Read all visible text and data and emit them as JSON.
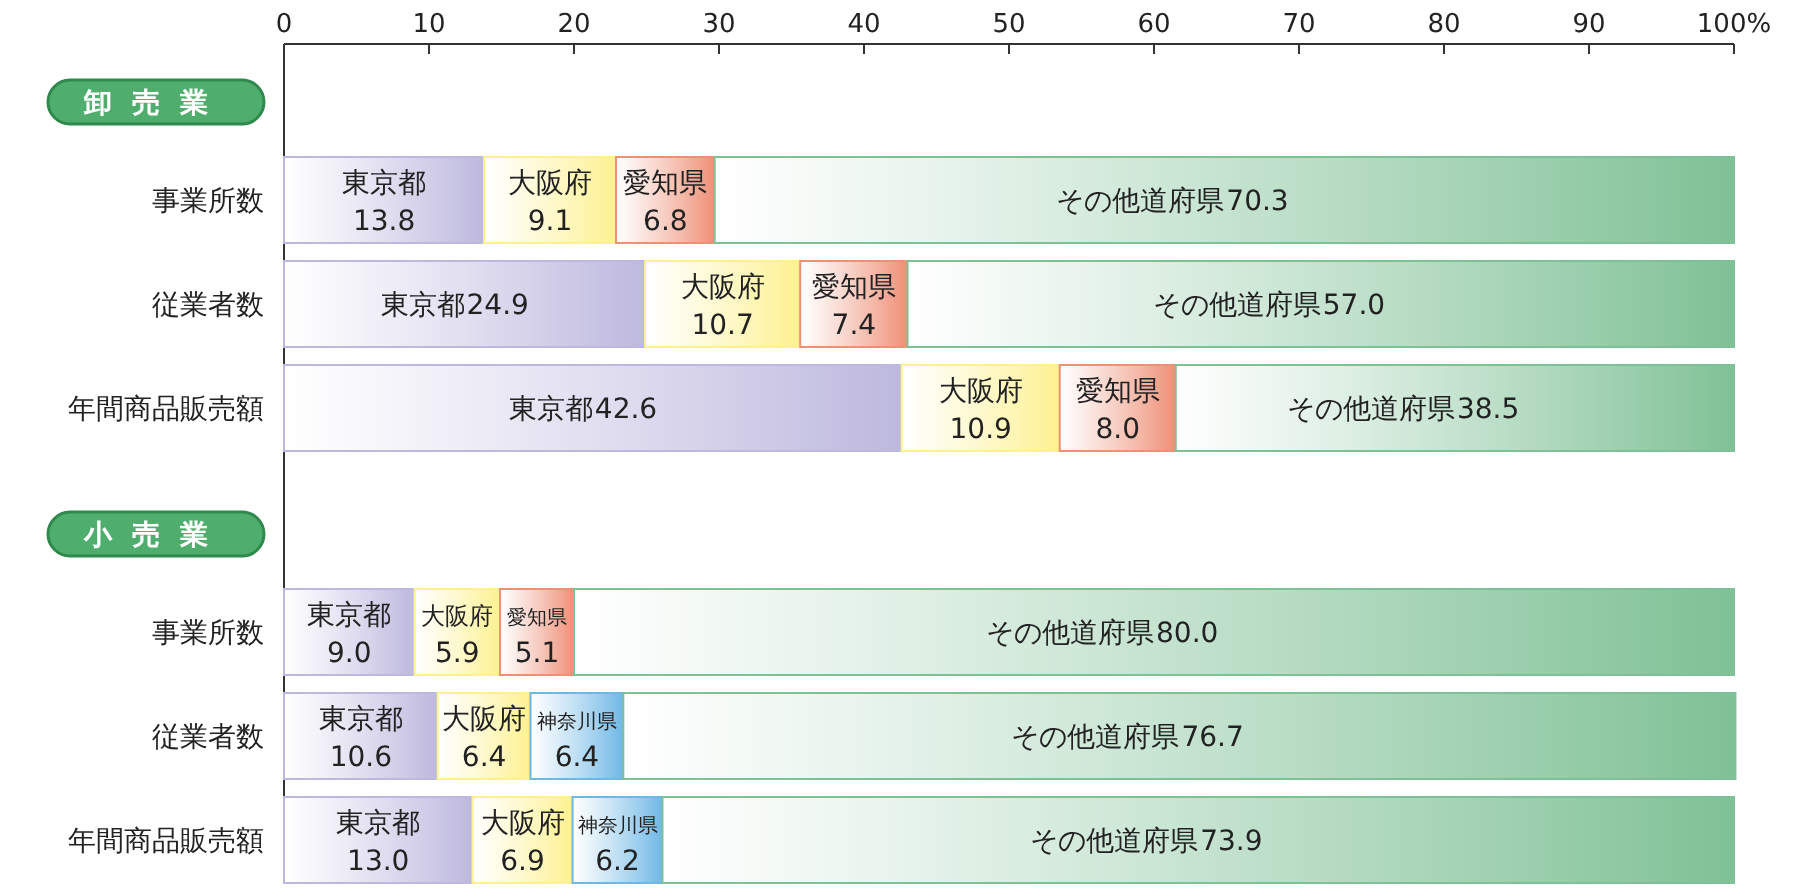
{
  "chart_data": [
    {
      "type": "bar",
      "orientation": "horizontal",
      "stacked": true,
      "title": "卸売業",
      "categories": [
        "事業所数",
        "従業者数",
        "年間商品販売額"
      ],
      "xlim": [
        0,
        100
      ],
      "xticks": [
        0,
        10,
        20,
        30,
        40,
        50,
        60,
        70,
        80,
        90,
        {
          "value": 100,
          "label": "100%"
        }
      ],
      "legend": false,
      "grid": false,
      "series": [
        {
          "name": "東京都",
          "color": "#bdb8de",
          "values": [
            13.8,
            24.9,
            42.6
          ],
          "value_labels": [
            "13.8",
            "24.9",
            "42.6"
          ]
        },
        {
          "name": "大阪府",
          "color": "#fdf18f",
          "values": [
            9.1,
            10.7,
            10.9
          ],
          "value_labels": [
            "9.1",
            "10.7",
            "10.9"
          ]
        },
        {
          "name": "愛知県",
          "color": "#ef8f76",
          "values": [
            6.8,
            7.4,
            8.0
          ],
          "value_labels": [
            "6.8",
            "7.4",
            "8.0"
          ]
        },
        {
          "name": "その他道府県",
          "color": "#7fc196",
          "values": [
            70.3,
            57.0,
            38.5
          ],
          "value_labels": [
            "70.3",
            "57.0",
            "38.5"
          ]
        }
      ]
    },
    {
      "type": "bar",
      "orientation": "horizontal",
      "stacked": true,
      "title": "小売業",
      "categories": [
        "事業所数",
        "従業者数",
        "年間商品販売額"
      ],
      "xlim": [
        0,
        100
      ],
      "legend": false,
      "grid": false,
      "series": [
        {
          "name": "東京都",
          "color": "#bdb8de",
          "values": [
            9.0,
            10.6,
            13.0
          ],
          "value_labels": [
            "9.0",
            "10.6",
            "13.0"
          ]
        },
        {
          "name": "大阪府",
          "color": "#fdf18f",
          "values": [
            5.9,
            6.4,
            6.9
          ],
          "value_labels": [
            "5.9",
            "6.4",
            "6.9"
          ]
        },
        {
          "name": "愛知県",
          "color": "#ef8f76",
          "values": [
            5.1,
            null,
            null
          ],
          "value_labels": [
            "5.1",
            null,
            null
          ]
        },
        {
          "name": "神奈川県",
          "color": "#6fb8e6",
          "values": [
            null,
            6.4,
            6.2
          ],
          "value_labels": [
            null,
            "6.4",
            "6.2"
          ]
        },
        {
          "name": "その他道府県",
          "color": "#7fc196",
          "values": [
            80.0,
            76.7,
            73.9
          ],
          "value_labels": [
            "80.0",
            "76.7",
            "73.9"
          ]
        }
      ]
    }
  ]
}
